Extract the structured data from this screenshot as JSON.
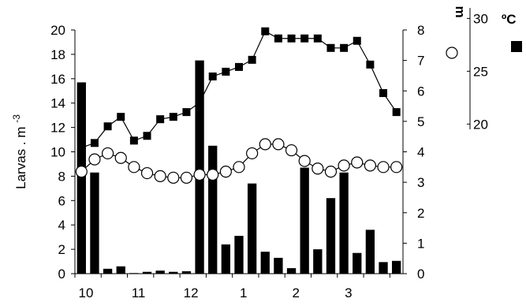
{
  "chart_data": {
    "type": "bar",
    "ylabel_left": "Larvas . m",
    "ylabel_left_exp": "-3",
    "x_tick_labels": [
      "10",
      "11",
      "12",
      "1",
      "2",
      "3"
    ],
    "ylim_left": [
      0,
      20
    ],
    "y_ticks_left": [
      0,
      2,
      4,
      6,
      8,
      10,
      12,
      14,
      16,
      18,
      20
    ],
    "ylim_right": [
      0,
      8
    ],
    "y_ticks_right": [
      0,
      1,
      2,
      3,
      4,
      5,
      6,
      7,
      8
    ],
    "temp_axis": {
      "unit": "ºC",
      "ticks": [
        20,
        25,
        30
      ],
      "range": [
        20,
        30
      ]
    },
    "depth_unit": "m",
    "grid": false,
    "series": [
      {
        "type": "bar",
        "axis": "left",
        "color": "#000000",
        "values": [
          15.7,
          8.3,
          0.4,
          0.6,
          0.05,
          0.15,
          0.25,
          0.15,
          0.2,
          17.5,
          10.5,
          2.4,
          3.1,
          7.4,
          1.8,
          1.3,
          0.45,
          8.7,
          2.0,
          6.2,
          8.3,
          1.7,
          3.6,
          0.95,
          1.05
        ]
      },
      {
        "type": "line",
        "marker": "square",
        "axis": "temperature",
        "color": "#000000",
        "values": [
          25.3,
          25.5,
          26.2,
          26.6,
          25.6,
          25.8,
          26.5,
          26.6,
          26.8,
          27.2,
          28.3,
          28.5,
          28.7,
          29.0,
          30.2,
          29.9,
          29.9,
          29.9,
          29.9,
          29.5,
          29.5,
          29.8,
          28.8,
          27.6,
          26.8
        ]
      },
      {
        "type": "line",
        "marker": "circle",
        "axis": "right",
        "color": "#000000",
        "values": [
          3.35,
          3.75,
          3.95,
          3.8,
          3.5,
          3.3,
          3.2,
          3.15,
          3.15,
          3.25,
          3.25,
          3.35,
          3.5,
          3.95,
          4.25,
          4.25,
          4.05,
          3.7,
          3.45,
          3.35,
          3.55,
          3.65,
          3.55,
          3.5,
          3.5
        ]
      }
    ]
  }
}
